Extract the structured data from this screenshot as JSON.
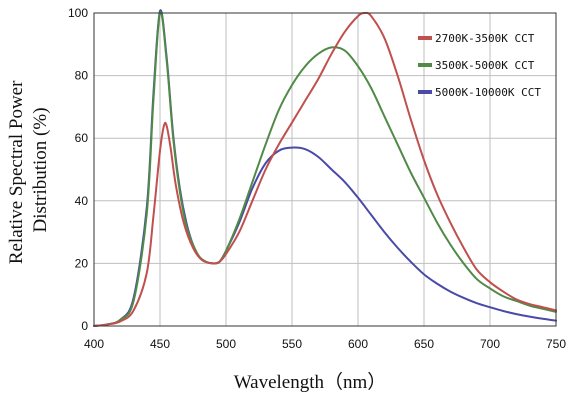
{
  "chart_data": {
    "type": "line",
    "xlabel": "Wavelength（nm）",
    "ylabel_lines": [
      "Relative Spectral Power",
      "Distribution (%)"
    ],
    "xlim": [
      400,
      750
    ],
    "ylim": [
      0,
      100
    ],
    "xticks": [
      400,
      450,
      500,
      550,
      600,
      650,
      700,
      750
    ],
    "yticks": [
      0,
      20,
      40,
      60,
      80,
      100
    ],
    "grid": true,
    "legend_position": "top-right",
    "series": [
      {
        "name": "2700K-3500K CCT",
        "color": "#c0504d",
        "x": [
          400,
          410,
          420,
          430,
          440,
          445,
          450,
          453,
          455,
          458,
          462,
          468,
          475,
          482,
          490,
          495,
          500,
          510,
          520,
          530,
          540,
          550,
          560,
          570,
          580,
          590,
          600,
          605,
          610,
          620,
          630,
          640,
          650,
          660,
          670,
          680,
          690,
          700,
          710,
          720,
          730,
          740,
          750
        ],
        "y": [
          0,
          0.5,
          1.5,
          5,
          17,
          35,
          56,
          64,
          64,
          57,
          45,
          33,
          25,
          21,
          20,
          20.5,
          23,
          30,
          40,
          50,
          58,
          65,
          72,
          79,
          87,
          94,
          99,
          100,
          99,
          92,
          80,
          66,
          53,
          42,
          33,
          25,
          18,
          14,
          11,
          8.5,
          7,
          6,
          5
        ]
      },
      {
        "name": "3500K-5000K CCT",
        "color": "#4f8a46",
        "x": [
          400,
          410,
          420,
          430,
          440,
          445,
          450,
          455,
          460,
          465,
          470,
          475,
          480,
          485,
          490,
          495,
          500,
          510,
          520,
          530,
          540,
          550,
          560,
          570,
          580,
          590,
          600,
          610,
          620,
          630,
          640,
          650,
          660,
          670,
          680,
          690,
          700,
          710,
          720,
          730,
          740,
          750
        ],
        "y": [
          0,
          0.5,
          2,
          8,
          36,
          72,
          100,
          85,
          60,
          43,
          32,
          26,
          22,
          20.5,
          20,
          20.5,
          24,
          34,
          46,
          58,
          69,
          77,
          83,
          87,
          89,
          88,
          83,
          76,
          67,
          58,
          49,
          41,
          33,
          26,
          20,
          15,
          12,
          9.5,
          8,
          6.5,
          5.5,
          4.5
        ]
      },
      {
        "name": "5000K-10000K CCT",
        "color": "#4a4aa8",
        "x": [
          400,
          410,
          420,
          430,
          440,
          445,
          450,
          455,
          460,
          465,
          470,
          475,
          480,
          485,
          490,
          495,
          500,
          510,
          520,
          530,
          540,
          550,
          560,
          570,
          580,
          590,
          600,
          610,
          620,
          630,
          640,
          650,
          660,
          670,
          680,
          690,
          700,
          710,
          720,
          730,
          740,
          750
        ],
        "y": [
          0,
          0.5,
          2,
          9,
          38,
          74,
          101,
          86,
          61,
          44,
          33,
          26,
          22,
          20.5,
          20,
          20.5,
          24,
          33,
          44,
          52,
          56,
          57,
          56.5,
          54,
          50,
          46,
          41,
          35.5,
          30,
          25,
          20.5,
          16.5,
          13.5,
          11,
          9,
          7.3,
          6,
          4.8,
          3.8,
          3,
          2.3,
          1.7
        ]
      }
    ]
  }
}
